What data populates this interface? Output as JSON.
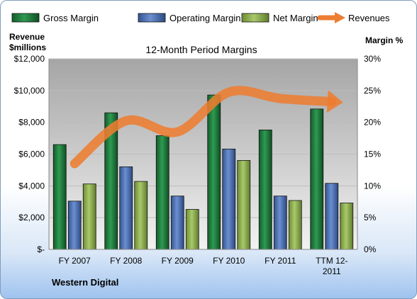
{
  "chart_data": {
    "type": "bar",
    "title": "12-Month Period Margins",
    "company": "Western Digital",
    "left_axis_label": [
      "Revenue",
      "$millions"
    ],
    "right_axis_label": "Margin %",
    "categories": [
      [
        "FY 2007"
      ],
      [
        "FY 2008"
      ],
      [
        "FY 2009"
      ],
      [
        "FY 2010"
      ],
      [
        "FY 2011"
      ],
      [
        "TTM 12-",
        "2011"
      ]
    ],
    "left_ylim": [
      0,
      12000
    ],
    "left_ticks": [
      {
        "value": 0,
        "label": "$-"
      },
      {
        "value": 2000,
        "label": "$2,000"
      },
      {
        "value": 4000,
        "label": "$4,000"
      },
      {
        "value": 6000,
        "label": "$6,000"
      },
      {
        "value": 8000,
        "label": "$8,000"
      },
      {
        "value": 10000,
        "label": "$10,000"
      },
      {
        "value": 12000,
        "label": "$12,000"
      }
    ],
    "right_ylim": [
      0,
      30
    ],
    "right_ticks": [
      {
        "value": 0,
        "label": "0%"
      },
      {
        "value": 5,
        "label": "5%"
      },
      {
        "value": 10,
        "label": "10%"
      },
      {
        "value": 15,
        "label": "15%"
      },
      {
        "value": 20,
        "label": "20%"
      },
      {
        "value": 25,
        "label": "25%"
      },
      {
        "value": 30,
        "label": "30%"
      }
    ],
    "series": [
      {
        "name": "Gross Margin",
        "axis": "right",
        "color": "#1e7a3c",
        "values": [
          16.5,
          21.5,
          17.9,
          24.3,
          18.8,
          22.1
        ]
      },
      {
        "name": "Operating Margin",
        "axis": "right",
        "color": "#4a6fb5",
        "values": [
          7.6,
          13.0,
          8.4,
          15.8,
          8.4,
          10.4
        ]
      },
      {
        "name": "Net Margin",
        "axis": "right",
        "color": "#8db04b",
        "values": [
          10.3,
          10.7,
          6.3,
          14.0,
          7.7,
          7.3
        ]
      },
      {
        "name": "Revenues",
        "axis": "left",
        "type": "line",
        "color": "#ed7d31",
        "values": [
          5400,
          8100,
          7400,
          9900,
          9500,
          9300
        ]
      }
    ],
    "grid": true,
    "legend": "top"
  }
}
